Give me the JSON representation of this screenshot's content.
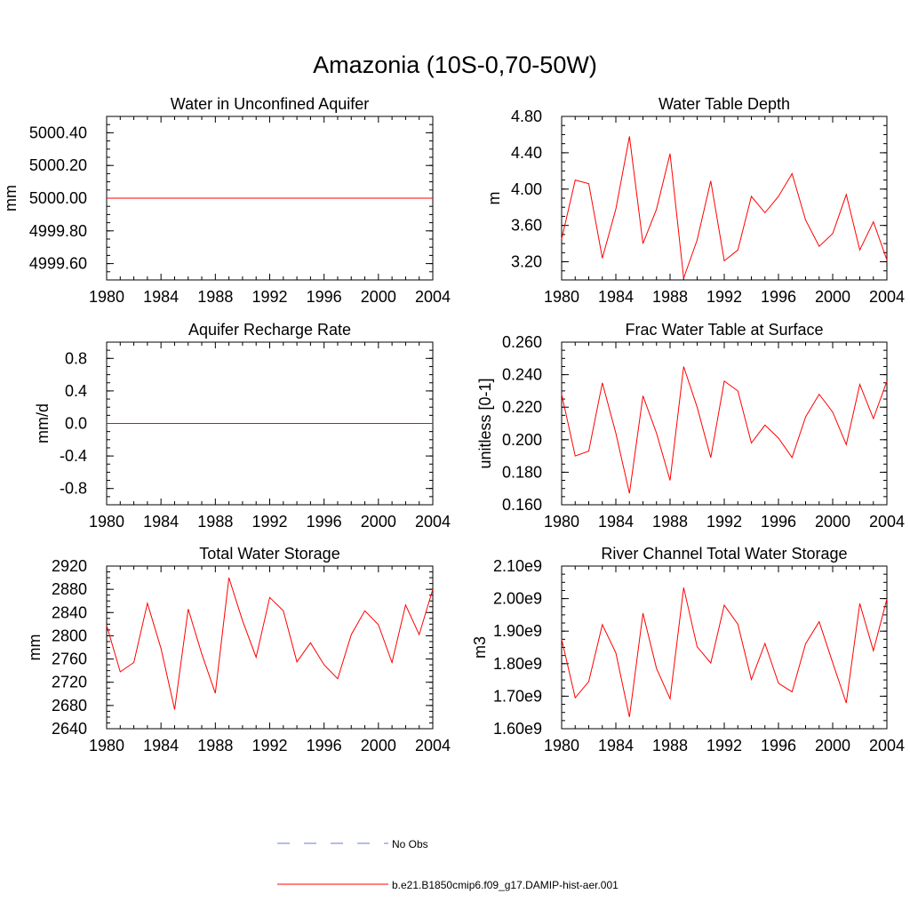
{
  "figure": {
    "title": "Amazonia (10S-0,70-50W)",
    "legend": {
      "placement": "bottom-center",
      "items": [
        {
          "label": "No Obs",
          "color": "#6a7bd0",
          "dash": true
        },
        {
          "label": "b.e21.B1850cmip6.f09_g17.DAMIP-hist-aer.001",
          "color": "#ff0000",
          "dash": false
        }
      ]
    }
  },
  "chart_data": [
    {
      "type": "line",
      "title": "Water in Unconfined Aquifer",
      "ylabel": "mm",
      "xlim": [
        1980,
        2004
      ],
      "ylim": [
        4999.5,
        5000.5
      ],
      "xticks": [
        "1980",
        "1984",
        "1988",
        "1992",
        "1996",
        "2000",
        "2004"
      ],
      "yticks": [
        "4999.60",
        "4999.80",
        "5000.00",
        "5000.20",
        "5000.40"
      ],
      "x": [
        1980,
        1981,
        1982,
        1983,
        1984,
        1985,
        1986,
        1987,
        1988,
        1989,
        1990,
        1991,
        1992,
        1993,
        1994,
        1995,
        1996,
        1997,
        1998,
        1999,
        2000,
        2001,
        2002,
        2003,
        2004
      ],
      "series": [
        {
          "values": [
            5000,
            5000,
            5000,
            5000,
            5000,
            5000,
            5000,
            5000,
            5000,
            5000,
            5000,
            5000,
            5000,
            5000,
            5000,
            5000,
            5000,
            5000,
            5000,
            5000,
            5000,
            5000,
            5000,
            5000,
            5000
          ]
        }
      ]
    },
    {
      "type": "line",
      "title": "Water Table Depth",
      "ylabel": "m",
      "xlim": [
        1980,
        2004
      ],
      "ylim": [
        3.0,
        4.8
      ],
      "xticks": [
        "1980",
        "1984",
        "1988",
        "1992",
        "1996",
        "2000",
        "2004"
      ],
      "yticks": [
        "3.20",
        "3.60",
        "4.00",
        "4.40",
        "4.80"
      ],
      "x": [
        1980,
        1981,
        1982,
        1983,
        1984,
        1985,
        1986,
        1987,
        1988,
        1989,
        1990,
        1991,
        1992,
        1993,
        1994,
        1995,
        1996,
        1997,
        1998,
        1999,
        2000,
        2001,
        2002,
        2003,
        2004
      ],
      "series": [
        {
          "values": [
            3.45,
            4.1,
            4.06,
            3.24,
            3.78,
            4.58,
            3.4,
            3.78,
            4.39,
            3.02,
            3.44,
            4.09,
            3.21,
            3.33,
            3.92,
            3.74,
            3.92,
            4.17,
            3.66,
            3.37,
            3.51,
            3.94,
            3.33,
            3.64,
            3.22
          ]
        }
      ]
    },
    {
      "type": "line",
      "title": "Aquifer Recharge Rate",
      "ylabel": "mm/d",
      "xlim": [
        1980,
        2004
      ],
      "ylim": [
        -1.0,
        1.0
      ],
      "xticks": [
        "1980",
        "1984",
        "1988",
        "1992",
        "1996",
        "2000",
        "2004"
      ],
      "yticks": [
        "-0.8",
        "-0.4",
        "0.0",
        "0.4",
        "0.8"
      ],
      "x": [
        1980,
        1981,
        1982,
        1983,
        1984,
        1985,
        1986,
        1987,
        1988,
        1989,
        1990,
        1991,
        1992,
        1993,
        1994,
        1995,
        1996,
        1997,
        1998,
        1999,
        2000,
        2001,
        2002,
        2003,
        2004
      ],
      "series": [
        {
          "values": [
            0,
            0,
            0,
            0,
            0,
            0,
            0,
            0,
            0,
            0,
            0,
            0,
            0,
            0,
            0,
            0,
            0,
            0,
            0,
            0,
            0,
            0,
            0,
            0,
            0
          ]
        }
      ]
    },
    {
      "type": "line",
      "title": "Frac Water Table at Surface",
      "ylabel": "unitless [0-1]",
      "xlim": [
        1980,
        2004
      ],
      "ylim": [
        0.16,
        0.26
      ],
      "xticks": [
        "1980",
        "1984",
        "1988",
        "1992",
        "1996",
        "2000",
        "2004"
      ],
      "yticks": [
        "0.160",
        "0.180",
        "0.200",
        "0.220",
        "0.240",
        "0.260"
      ],
      "x": [
        1980,
        1981,
        1982,
        1983,
        1984,
        1985,
        1986,
        1987,
        1988,
        1989,
        1990,
        1991,
        1992,
        1993,
        1994,
        1995,
        1996,
        1997,
        1998,
        1999,
        2000,
        2001,
        2002,
        2003,
        2004
      ],
      "series": [
        {
          "values": [
            0.228,
            0.19,
            0.193,
            0.235,
            0.204,
            0.167,
            0.227,
            0.204,
            0.175,
            0.245,
            0.22,
            0.189,
            0.236,
            0.23,
            0.198,
            0.209,
            0.201,
            0.189,
            0.214,
            0.228,
            0.217,
            0.197,
            0.234,
            0.213,
            0.236
          ]
        }
      ]
    },
    {
      "type": "line",
      "title": "Total Water Storage",
      "ylabel": "mm",
      "xlim": [
        1980,
        2004
      ],
      "ylim": [
        2640,
        2920
      ],
      "xticks": [
        "1980",
        "1984",
        "1988",
        "1992",
        "1996",
        "2000",
        "2004"
      ],
      "yticks": [
        "2640",
        "2680",
        "2720",
        "2760",
        "2800",
        "2840",
        "2880",
        "2920"
      ],
      "x": [
        1980,
        1981,
        1982,
        1983,
        1984,
        1985,
        1986,
        1987,
        1988,
        1989,
        1990,
        1991,
        1992,
        1993,
        1994,
        1995,
        1996,
        1997,
        1998,
        1999,
        2000,
        2001,
        2002,
        2003,
        2004
      ],
      "series": [
        {
          "values": [
            2818,
            2738,
            2754,
            2856,
            2778,
            2673,
            2846,
            2769,
            2701,
            2900,
            2826,
            2763,
            2866,
            2843,
            2755,
            2788,
            2750,
            2726,
            2802,
            2843,
            2819,
            2754,
            2853,
            2802,
            2880
          ]
        }
      ]
    },
    {
      "type": "line",
      "title": "River Channel Total Water Storage",
      "ylabel": "m3",
      "xlim": [
        1980,
        2004
      ],
      "ylim": [
        1600000000.0,
        2100000000.0
      ],
      "xticks": [
        "1980",
        "1984",
        "1988",
        "1992",
        "1996",
        "2000",
        "2004"
      ],
      "yticks": [
        "1.60e9",
        "1.70e9",
        "1.80e9",
        "1.90e9",
        "2.00e9",
        "2.10e9"
      ],
      "x": [
        1980,
        1981,
        1982,
        1983,
        1984,
        1985,
        1986,
        1987,
        1988,
        1989,
        1990,
        1991,
        1992,
        1993,
        1994,
        1995,
        1996,
        1997,
        1998,
        1999,
        2000,
        2001,
        2002,
        2003,
        2004
      ],
      "series": [
        {
          "values": [
            1875000000.0,
            1695000000.0,
            1745000000.0,
            1920000000.0,
            1833000000.0,
            1636000000.0,
            1955000000.0,
            1785000000.0,
            1692000000.0,
            2034000000.0,
            1852000000.0,
            1802000000.0,
            1980000000.0,
            1921000000.0,
            1751000000.0,
            1862000000.0,
            1740000000.0,
            1713000000.0,
            1861000000.0,
            1929000000.0,
            1803000000.0,
            1679000000.0,
            1985000000.0,
            1840000000.0,
            1999000000.0
          ]
        }
      ]
    }
  ]
}
